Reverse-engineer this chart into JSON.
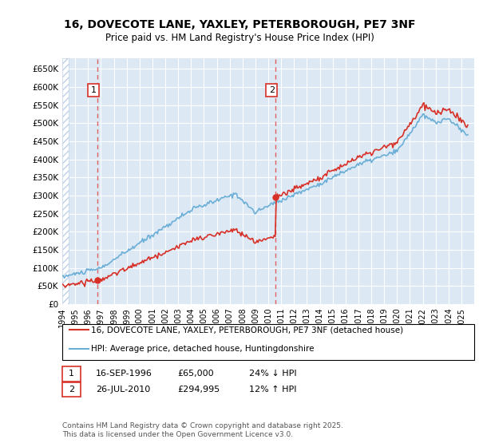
{
  "title": "16, DOVECOTE LANE, YAXLEY, PETERBOROUGH, PE7 3NF",
  "subtitle": "Price paid vs. HM Land Registry's House Price Index (HPI)",
  "legend_line1": "16, DOVECOTE LANE, YAXLEY, PETERBOROUGH, PE7 3NF (detached house)",
  "legend_line2": "HPI: Average price, detached house, Huntingdonshire",
  "annotation1_box": "1",
  "annotation1_date": "16-SEP-1996",
  "annotation1_price": "£65,000",
  "annotation1_hpi": "24% ↓ HPI",
  "annotation2_box": "2",
  "annotation2_date": "26-JUL-2010",
  "annotation2_price": "£294,995",
  "annotation2_hpi": "12% ↑ HPI",
  "footer": "Contains HM Land Registry data © Crown copyright and database right 2025.\nThis data is licensed under the Open Government Licence v3.0.",
  "hpi_color": "#6baed6",
  "price_color": "#d73027",
  "sale1_x": 1996.71,
  "sale1_y": 65000,
  "sale2_x": 2010.56,
  "sale2_y": 294995,
  "xmin": 1994,
  "xmax": 2026,
  "ymin": 0,
  "ymax": 680000,
  "yticks": [
    0,
    50000,
    100000,
    150000,
    200000,
    250000,
    300000,
    350000,
    400000,
    450000,
    500000,
    550000,
    600000,
    650000
  ],
  "ytick_labels": [
    "£0",
    "£50K",
    "£100K",
    "£150K",
    "£200K",
    "£250K",
    "£300K",
    "£350K",
    "£400K",
    "£450K",
    "£500K",
    "£550K",
    "£600K",
    "£650K"
  ],
  "xticks": [
    1994,
    1995,
    1996,
    1997,
    1998,
    1999,
    2000,
    2001,
    2002,
    2003,
    2004,
    2005,
    2006,
    2007,
    2008,
    2009,
    2010,
    2011,
    2012,
    2013,
    2014,
    2015,
    2016,
    2017,
    2018,
    2019,
    2020,
    2021,
    2022,
    2023,
    2024,
    2025
  ],
  "bg_color": "#dce9f5",
  "hatch_color": "#c0d0e8",
  "grid_color": "#ffffff",
  "sale1_vline_color": "#e06060",
  "sale2_vline_color": "#e06060"
}
